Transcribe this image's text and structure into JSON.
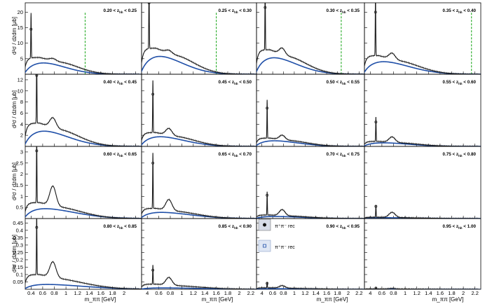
{
  "figure": {
    "ylabels": [
      "d²σ / dzdm [μb]",
      "d²σ / dzdm [μb]",
      "d²σ / dzdm [μb]",
      "d²σ / dzdm [μb]"
    ],
    "xlabel": "m_ππ [GeV]",
    "legend": [
      {
        "label": "π⁺π⁻ rec",
        "marker": "filled-circle"
      },
      {
        "label": "π⁺π⁻ rec",
        "marker": "open-square"
      }
    ],
    "colors": {
      "data": "#1a1a1a",
      "model": "#1f4fa8",
      "threshold": "#22aa22",
      "frame": "#000000",
      "legend_fill": "#d7dce8"
    }
  },
  "chart_data": {
    "type": "line",
    "x_unit": "GeV",
    "xlim": [
      0.3,
      2.3
    ],
    "x_ticks": [
      {
        "v": 0.4,
        "label": "0.4"
      },
      {
        "v": 0.6,
        "label": "0.6"
      },
      {
        "v": 0.8,
        "label": "0.8"
      },
      {
        "v": 1.0,
        "label": "1"
      },
      {
        "v": 1.2,
        "label": "1.2"
      },
      {
        "v": 1.4,
        "label": "1.4"
      },
      {
        "v": 1.6,
        "label": "1.6"
      },
      {
        "v": 1.8,
        "label": "1.8"
      },
      {
        "v": 2.0,
        "label": "2"
      },
      {
        "v": 2.2,
        "label": "2.2"
      }
    ],
    "first_col_ticks": [
      "0.4",
      "0.6",
      "0.8",
      "1",
      "1.2",
      "1.4",
      "1.6",
      "1.8",
      "2"
    ],
    "other_col_ticks": [
      "4",
      "0.6",
      "0.8",
      "1",
      "1.2",
      "1.4",
      "1.6",
      "1.8",
      "2",
      "2.2"
    ],
    "rows": [
      {
        "ylim": [
          0,
          23
        ],
        "yticks": [
          5,
          10,
          15,
          20
        ]
      },
      {
        "ylim": [
          0,
          13
        ],
        "yticks": [
          2,
          4,
          6,
          8,
          10,
          12
        ]
      },
      {
        "ylim": [
          0,
          3.25
        ],
        "yticks": [
          0.5,
          1,
          1.5,
          2,
          2.5,
          3
        ]
      },
      {
        "ylim": [
          0,
          0.48
        ],
        "yticks": [
          0.05,
          0.1,
          0.15,
          0.2,
          0.25,
          0.3,
          0.35,
          0.4,
          0.45
        ]
      }
    ],
    "panels": [
      {
        "label": "0.20 < z_hh < 0.25",
        "k0": 0.4,
        "rho": 5.0,
        "peak": 14.5,
        "bg": 5.4,
        "model": 4.0,
        "ks": 1.0,
        "threshold": 1.33,
        "fall": 0.9
      },
      {
        "label": "0.25 < z_hh < 0.30",
        "k0": 0.43,
        "rho": 7.6,
        "peak": 23.0,
        "bg": 8.4,
        "model": 6.3,
        "ks": 1.0,
        "threshold": 1.6,
        "fall": 0.95
      },
      {
        "label": "0.30 < z_hh < 0.35",
        "k0": 0.46,
        "rho": 8.3,
        "peak": 21.5,
        "bg": 7.9,
        "model": 5.8,
        "ks": 1.0,
        "threshold": 1.87,
        "fall": 1.0
      },
      {
        "label": "0.35 < z_hh < 0.40",
        "k0": 0.49,
        "rho": 6.7,
        "peak": 20.0,
        "bg": 6.0,
        "model": 4.4,
        "ks": 1.0,
        "threshold": 2.14,
        "fall": 1.05
      },
      {
        "label": "0.40 < z_hh < 0.45",
        "k0": 0.497,
        "rho": 5.1,
        "peak": 12.8,
        "bg": 4.2,
        "model": 3.0,
        "ks": 1.0,
        "threshold": null,
        "fall": 1.0
      },
      {
        "label": "0.45 < z_hh < 0.50",
        "k0": 0.497,
        "rho": 3.2,
        "peak": 9.4,
        "bg": 2.5,
        "model": 1.9,
        "ks": 1.0,
        "threshold": null,
        "fall": 1.0
      },
      {
        "label": "0.50 < z_hh < 0.55",
        "k0": 0.497,
        "rho": 2.0,
        "peak": 6.9,
        "bg": 1.5,
        "model": 1.1,
        "ks": 1.0,
        "threshold": null,
        "fall": 1.05
      },
      {
        "label": "0.55 < z_hh < 0.60",
        "k0": 0.497,
        "rho": 1.7,
        "peak": 4.4,
        "bg": 0.9,
        "model": 0.7,
        "ks": 1.0,
        "threshold": null,
        "fall": 1.05
      },
      {
        "label": "0.60 < z_hh < 0.65",
        "k0": 0.497,
        "rho": 1.45,
        "peak": 3.05,
        "bg": 0.72,
        "model": 0.48,
        "ks": 1.0,
        "threshold": null,
        "fall": 1.2
      },
      {
        "label": "0.65 < z_hh < 0.70",
        "k0": 0.497,
        "rho": 0.85,
        "peak": 2.5,
        "bg": 0.46,
        "model": 0.3,
        "ks": 1.0,
        "threshold": null,
        "fall": 1.2
      },
      {
        "label": "0.70 < z_hh < 0.75",
        "k0": 0.497,
        "rho": 0.4,
        "peak": 1.05,
        "bg": 0.16,
        "model": 0.1,
        "ks": 1.0,
        "threshold": null,
        "fall": 1.2
      },
      {
        "label": "0.75 < z_hh < 0.80",
        "k0": 0.497,
        "rho": 0.28,
        "peak": 0.55,
        "bg": 0.06,
        "model": 0.04,
        "ks": 1.0,
        "threshold": null,
        "fall": 1.2
      },
      {
        "label": "0.80 < z_hh < 0.85",
        "k0": 0.497,
        "rho": 0.185,
        "peak": 0.42,
        "bg": 0.1,
        "model": 0.035,
        "ks": 1.0,
        "threshold": null,
        "fall": 1.5
      },
      {
        "label": "0.85 < z_hh < 0.90",
        "k0": 0.497,
        "rho": 0.08,
        "peak": 0.13,
        "bg": 0.035,
        "model": 0.01,
        "ks": 1.0,
        "threshold": null,
        "fall": 1.5
      },
      {
        "label": "0.90 < z_hh < 0.95",
        "k0": 0.497,
        "rho": 0.025,
        "peak": 0.04,
        "bg": 0.01,
        "model": 0.004,
        "ks": 1.0,
        "threshold": null,
        "fall": 1.5
      },
      {
        "label": "0.95 < z_hh < 1.00",
        "k0": 0.497,
        "rho": 0.006,
        "peak": 0.008,
        "bg": 0.003,
        "model": 0.001,
        "ks": 1.0,
        "threshold": null,
        "fall": 1.5
      }
    ]
  }
}
